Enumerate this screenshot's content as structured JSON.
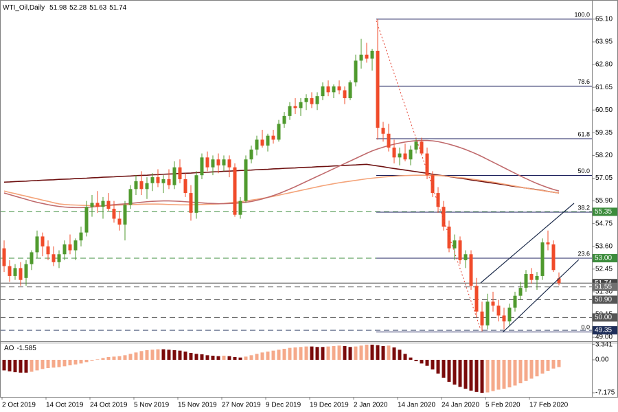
{
  "chart_data": [
    {
      "type": "candlestick",
      "title": "WTI_Oil,Daily",
      "last_ohlc": [
        51.98,
        52.28,
        51.63,
        51.74
      ],
      "categories": [
        "2 Oct 2019",
        null,
        null,
        null,
        null,
        null,
        null,
        null,
        "14 Oct 2019",
        null,
        null,
        null,
        null,
        null,
        null,
        null,
        "24 Oct 2019",
        null,
        null,
        null,
        null,
        null,
        null,
        null,
        "5 Nov 2019",
        null,
        null,
        null,
        null,
        null,
        null,
        null,
        "15 Nov 2019",
        null,
        null,
        null,
        null,
        null,
        null,
        null,
        "27 Nov 2019",
        null,
        null,
        null,
        null,
        null,
        null,
        null,
        "9 Dec 2019",
        null,
        null,
        null,
        null,
        null,
        null,
        null,
        "19 Dec 2019",
        null,
        null,
        null,
        null,
        null,
        null,
        null,
        "2 Jan 2020",
        null,
        null,
        null,
        null,
        null,
        null,
        null,
        "14 Jan 2020",
        null,
        null,
        null,
        null,
        null,
        null,
        null,
        "24 Jan 2020",
        null,
        null,
        null,
        null,
        null,
        null,
        null,
        "5 Feb 2020",
        null,
        null,
        null,
        null,
        null,
        null,
        null,
        "17 Feb 2020",
        null,
        null,
        null,
        null,
        null
      ],
      "open": [
        53.5,
        52.6,
        52.1,
        52.5,
        52.0,
        52.7,
        53.3,
        54.1,
        53.6,
        53.2,
        52.8,
        53.2,
        53.7,
        53.4,
        53.9,
        54.3,
        55.6,
        55.8,
        55.6,
        55.9,
        55.5,
        55.0,
        54.7,
        55.7,
        56.5,
        56.9,
        56.5,
        56.8,
        57.1,
        56.8,
        57.0,
        56.7,
        57.6,
        57.0,
        56.3,
        55.3,
        57.2,
        58.1,
        57.6,
        58.0,
        57.7,
        58.0,
        57.6,
        55.2,
        55.9,
        58.0,
        58.5,
        59.0,
        58.7,
        59.2,
        59.0,
        59.8,
        60.2,
        60.7,
        60.6,
        60.9,
        61.1,
        60.8,
        61.2,
        61.7,
        61.4,
        61.7,
        61.5,
        61.1,
        61.9,
        63.0,
        63.3,
        63.1,
        63.5,
        59.6,
        59.3,
        58.6,
        58.1,
        58.3,
        58.0,
        58.5,
        58.9,
        58.3,
        57.2,
        56.3,
        55.6,
        54.6,
        53.5,
        53.9,
        52.9,
        53.2,
        51.6,
        50.3,
        49.6,
        50.8,
        50.6,
        50.1,
        49.8,
        50.5,
        51.1,
        51.5,
        52.2,
        51.9,
        52.1,
        53.8,
        53.7,
        51.98
      ],
      "high": [
        53.9,
        52.9,
        52.7,
        52.8,
        52.9,
        53.4,
        54.4,
        54.3,
        53.9,
        53.6,
        53.4,
        53.9,
        54.2,
        54.0,
        54.6,
        55.9,
        56.2,
        56.4,
        56.1,
        56.3,
        55.9,
        55.4,
        55.9,
        56.7,
        57.2,
        57.4,
        57.1,
        57.3,
        57.5,
        57.2,
        57.5,
        57.9,
        58.0,
        57.3,
        56.7,
        57.4,
        58.3,
        58.4,
        58.2,
        58.3,
        58.2,
        58.2,
        57.8,
        56.1,
        58.2,
        58.7,
        59.2,
        59.5,
        59.3,
        59.5,
        60.0,
        60.4,
        60.9,
        61.1,
        61.1,
        61.3,
        61.4,
        61.4,
        61.9,
        62.0,
        61.8,
        62.0,
        61.7,
        62.0,
        63.3,
        64.1,
        63.9,
        63.6,
        65.1,
        59.9,
        59.8,
        59.0,
        58.6,
        58.8,
        58.7,
        59.1,
        59.1,
        58.6,
        57.4,
        56.6,
        55.9,
        54.9,
        54.2,
        54.1,
        53.4,
        53.4,
        52.0,
        50.8,
        51.2,
        51.3,
        50.9,
        50.5,
        50.7,
        51.3,
        51.8,
        52.4,
        52.5,
        52.3,
        54.0,
        54.4,
        53.9,
        52.28
      ],
      "low": [
        52.3,
        51.8,
        51.9,
        51.6,
        51.6,
        52.4,
        53.0,
        53.1,
        52.9,
        52.6,
        52.5,
        52.9,
        53.2,
        52.9,
        53.6,
        54.1,
        55.1,
        55.3,
        55.0,
        55.4,
        54.8,
        54.4,
        53.9,
        55.5,
        56.2,
        56.2,
        56.0,
        56.4,
        56.6,
        56.3,
        56.5,
        56.5,
        56.8,
        56.1,
        54.9,
        55.0,
        57.0,
        57.4,
        57.2,
        57.3,
        57.4,
        57.1,
        55.1,
        55.0,
        55.8,
        57.8,
        58.2,
        58.6,
        58.4,
        58.8,
        58.9,
        59.6,
        60.0,
        60.3,
        60.2,
        60.5,
        60.6,
        60.5,
        61.0,
        61.2,
        61.1,
        61.3,
        60.8,
        61.0,
        61.7,
        62.6,
        62.9,
        62.5,
        59.0,
        58.9,
        58.4,
        57.8,
        57.7,
        57.9,
        57.7,
        58.3,
        58.2,
        57.0,
        56.1,
        55.3,
        54.4,
        53.3,
        52.9,
        52.7,
        52.5,
        51.4,
        50.0,
        49.3,
        49.4,
        50.3,
        49.8,
        49.4,
        49.6,
        50.3,
        50.9,
        51.3,
        51.7,
        51.4,
        51.9,
        53.4,
        52.3,
        51.63
      ],
      "close": [
        52.6,
        52.1,
        52.5,
        51.9,
        52.7,
        53.3,
        54.1,
        53.6,
        53.2,
        52.8,
        53.2,
        53.7,
        53.4,
        53.9,
        54.3,
        55.6,
        55.8,
        55.6,
        55.9,
        55.5,
        55.0,
        54.7,
        55.7,
        56.5,
        56.9,
        56.5,
        56.8,
        57.1,
        56.8,
        57.0,
        56.7,
        57.6,
        57.0,
        56.3,
        55.3,
        57.2,
        58.1,
        57.6,
        58.0,
        57.7,
        58.0,
        57.6,
        55.2,
        55.9,
        58.0,
        58.5,
        59.0,
        58.7,
        59.2,
        59.0,
        59.8,
        60.2,
        60.7,
        60.6,
        60.9,
        61.1,
        60.8,
        61.2,
        61.7,
        61.4,
        61.7,
        61.5,
        61.1,
        61.9,
        63.0,
        63.3,
        63.1,
        63.5,
        59.6,
        59.3,
        58.6,
        58.1,
        58.3,
        58.0,
        58.5,
        58.9,
        58.3,
        57.2,
        56.3,
        55.6,
        54.6,
        53.5,
        53.9,
        52.9,
        53.2,
        51.6,
        50.3,
        49.6,
        50.8,
        50.6,
        50.1,
        49.8,
        50.5,
        51.1,
        51.5,
        52.2,
        51.9,
        52.1,
        53.8,
        53.7,
        52.4,
        51.74
      ],
      "up_color": "#4f9a2e",
      "down_color": "#f04b2a",
      "lines": [
        {
          "color": "#6e1010",
          "values": [
            56.85,
            56.86,
            56.88,
            56.89,
            56.9,
            56.92,
            56.93,
            56.95,
            56.96,
            56.97,
            56.99,
            57.0,
            57.01,
            57.03,
            57.04,
            57.05,
            57.07,
            57.08,
            57.1,
            57.11,
            57.12,
            57.14,
            57.15,
            57.16,
            57.18,
            57.19,
            57.2,
            57.22,
            57.23,
            57.25,
            57.26,
            57.27,
            57.29,
            57.3,
            57.31,
            57.33,
            57.34,
            57.35,
            57.37,
            57.38,
            57.4,
            57.41,
            57.42,
            57.44,
            57.45,
            57.46,
            57.48,
            57.49,
            57.5,
            57.52,
            57.53,
            57.55,
            57.56,
            57.57,
            57.59,
            57.6,
            57.61,
            57.63,
            57.64,
            57.65,
            57.67,
            57.68,
            57.7,
            57.71,
            57.72,
            57.74,
            57.75,
            57.71,
            57.67,
            57.63,
            57.58,
            57.54,
            57.5,
            57.46,
            57.42,
            57.38,
            57.34,
            57.3,
            57.25,
            57.21,
            57.17,
            57.13,
            57.09,
            57.05,
            57.01,
            56.96,
            56.92,
            56.88,
            56.84,
            56.8,
            56.76,
            56.72,
            56.67,
            56.63,
            56.59,
            56.55,
            56.51,
            56.47,
            56.43,
            56.38,
            56.34,
            56.3
          ]
        },
        {
          "color": "#f4a47a",
          "values": [
            56.4,
            56.33,
            56.27,
            56.2,
            56.14,
            56.07,
            56.01,
            55.94,
            55.88,
            55.81,
            55.75,
            55.72,
            55.7,
            55.69,
            55.68,
            55.67,
            55.66,
            55.66,
            55.66,
            55.67,
            55.68,
            55.69,
            55.7,
            55.71,
            55.72,
            55.73,
            55.74,
            55.74,
            55.74,
            55.73,
            55.72,
            55.71,
            55.7,
            55.7,
            55.7,
            55.71,
            55.72,
            55.73,
            55.74,
            55.75,
            55.77,
            55.8,
            55.83,
            55.86,
            55.9,
            55.94,
            55.98,
            56.03,
            56.08,
            56.13,
            56.19,
            56.25,
            56.31,
            56.37,
            56.43,
            56.49,
            56.55,
            56.61,
            56.67,
            56.72,
            56.77,
            56.82,
            56.86,
            56.9,
            56.94,
            56.98,
            57.02,
            57.05,
            57.08,
            57.11,
            57.13,
            57.15,
            57.17,
            57.18,
            57.19,
            57.2,
            57.2,
            57.2,
            57.19,
            57.18,
            57.17,
            57.14,
            57.11,
            57.08,
            57.05,
            57.01,
            56.97,
            56.93,
            56.89,
            56.85,
            56.8,
            56.75,
            56.7,
            56.65,
            56.6,
            56.55,
            56.5,
            56.46,
            56.42,
            56.38,
            56.34,
            56.3
          ]
        },
        {
          "color": "#c06a6c",
          "values": [
            56.3,
            56.22,
            56.14,
            56.06,
            55.98,
            55.9,
            55.83,
            55.77,
            55.71,
            55.66,
            55.62,
            55.59,
            55.57,
            55.56,
            55.56,
            55.57,
            55.59,
            55.62,
            55.65,
            55.68,
            55.71,
            55.73,
            55.75,
            55.77,
            55.8,
            55.83,
            55.86,
            55.88,
            55.89,
            55.9,
            55.9,
            55.89,
            55.88,
            55.86,
            55.84,
            55.82,
            55.8,
            55.78,
            55.77,
            55.76,
            55.76,
            55.77,
            55.78,
            55.8,
            55.83,
            55.87,
            55.93,
            56.0,
            56.08,
            56.17,
            56.27,
            56.38,
            56.5,
            56.62,
            56.75,
            56.88,
            57.01,
            57.14,
            57.27,
            57.4,
            57.53,
            57.66,
            57.79,
            57.92,
            58.05,
            58.18,
            58.31,
            58.43,
            58.53,
            58.62,
            58.7,
            58.77,
            58.83,
            58.88,
            58.92,
            58.95,
            58.96,
            58.96,
            58.94,
            58.9,
            58.84,
            58.77,
            58.69,
            58.6,
            58.5,
            58.39,
            58.27,
            58.14,
            58.0,
            57.86,
            57.72,
            57.58,
            57.44,
            57.3,
            57.16,
            57.03,
            56.9,
            56.78,
            56.67,
            56.57,
            56.48,
            56.4
          ]
        }
      ],
      "levels": [
        55.35,
        {
          "value": 53,
          "label": "53.00"
        },
        51.74,
        51.55,
        {
          "value": 50.9,
          "label": "50.90"
        },
        {
          "value": 50,
          "label": "50.00"
        },
        49.35
      ],
      "level_colors": [
        "#3c8c3c",
        "#3c8c3c",
        "#454545",
        "#707070",
        "#555555",
        "#555555",
        "#1f2f5a"
      ],
      "level_dash": [
        true,
        true,
        false,
        true,
        true,
        true,
        true
      ],
      "fib_levels": [
        {
          "level": {
            "value": 100,
            "label": "100.0"
          },
          "price": 65.1
        },
        {
          "level": 78.6,
          "price": 61.71
        },
        {
          "level": 61.8,
          "price": 59.05
        },
        {
          "level": {
            "value": 50,
            "label": "50.0"
          },
          "price": 57.19
        },
        {
          "level": 38.2,
          "price": 55.33
        },
        {
          "level": 23.6,
          "price": 53.0
        },
        {
          "level": {
            "value": 0,
            "label": "0.0"
          },
          "price": 49.27
        }
      ],
      "fib_color": "#1b1f5c",
      "ylim": [
        48.83,
        66.0
      ],
      "yticks": [
        {
          "value": 65.1,
          "label": "65.10"
        },
        63.95,
        {
          "value": 62.8,
          "label": "62.80"
        },
        61.65,
        {
          "value": 60.5,
          "label": "60.50"
        },
        59.35,
        {
          "value": 58.2,
          "label": "58.20"
        },
        57.05,
        {
          "value": 55.9,
          "label": "55.90"
        },
        54.75,
        {
          "value": 53.6,
          "label": "53.60"
        },
        52.45,
        {
          "value": 51.3,
          "label": "51.30"
        },
        50.15,
        {
          "value": 49,
          "label": "49.00"
        }
      ]
    },
    {
      "type": "bar",
      "title": "AO",
      "value": -1.585,
      "values": [
        -2.3,
        -2.5,
        -2.7,
        -2.8,
        -2.8,
        -2.6,
        -2.3,
        -2.0,
        -1.8,
        -1.7,
        -1.6,
        -1.4,
        -1.2,
        -1.0,
        -0.8,
        -0.5,
        -0.2,
        0.1,
        0.4,
        0.6,
        0.7,
        0.8,
        1.0,
        1.3,
        1.6,
        1.9,
        2.1,
        2.2,
        2.3,
        2.3,
        2.2,
        2.1,
        2.0,
        1.8,
        1.5,
        1.3,
        1.2,
        1.0,
        0.9,
        0.8,
        0.9,
        0.8,
        0.6,
        0.5,
        0.7,
        1.0,
        1.3,
        1.6,
        1.8,
        2.0,
        2.2,
        2.4,
        2.6,
        2.7,
        2.8,
        2.9,
        2.9,
        2.8,
        2.8,
        2.9,
        3.0,
        3.1,
        3.0,
        2.8,
        2.9,
        3.1,
        3.3,
        3.3,
        3.2,
        3.0,
        3.1,
        2.7,
        2.2,
        1.3,
        0.5,
        -0.3,
        -0.8,
        -1.3,
        -2.1,
        -3.0,
        -3.9,
        -4.8,
        -5.4,
        -5.9,
        -6.3,
        -6.7,
        -7.0,
        -7.175,
        -7.1,
        -6.8,
        -6.5,
        -6.3,
        -6.0,
        -5.6,
        -5.1,
        -4.6,
        -4.1,
        -3.6,
        -3.0,
        -2.4,
        -1.9,
        -1.585
      ],
      "up_color": "#f5a98a",
      "down_color": "#7a0b0b",
      "ylim": [
        -8.07,
        3.59
      ],
      "yticks": [
        3.341,
        {
          "value": 0,
          "label": "0.00"
        },
        -7.175
      ]
    }
  ]
}
